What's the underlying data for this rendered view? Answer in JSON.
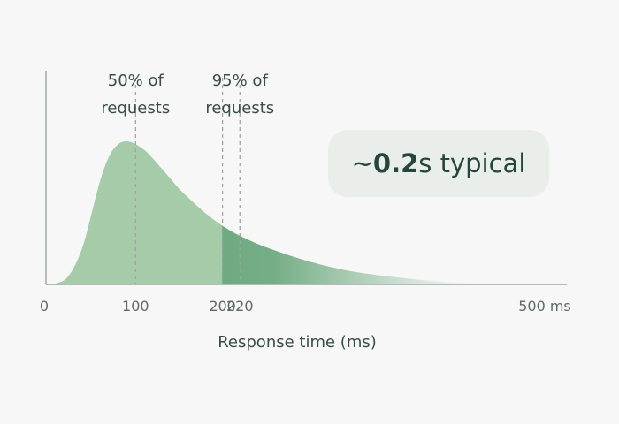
{
  "callout": {
    "prefix": "~",
    "value": "0.2",
    "suffix": "s typical"
  },
  "chart_data": {
    "type": "area",
    "title": "",
    "xlabel": "Response time (ms)",
    "ylabel": "",
    "xlim": [
      0,
      500
    ],
    "x_ticks": [
      {
        "value": 0,
        "label": "0"
      },
      {
        "value": 100,
        "label": "100"
      },
      {
        "value": 200,
        "label": "200"
      },
      {
        "value": 220,
        "label": "220"
      },
      {
        "value": 500,
        "label": "500 ms"
      }
    ],
    "markers": [
      {
        "x": 100,
        "line1": "50% of",
        "line2": "requests"
      },
      {
        "x": 200,
        "line1": "",
        "line2": ""
      },
      {
        "x": 220,
        "line1": "95% of",
        "line2": "requests"
      }
    ],
    "series": [
      {
        "x": [
          0,
          10,
          20,
          30,
          40,
          50,
          60,
          70,
          80,
          90,
          100,
          110,
          120,
          130,
          140,
          150,
          160,
          180,
          200,
          220,
          250,
          300,
          350,
          400,
          450,
          500
        ],
        "y": [
          0,
          0.01,
          0.04,
          0.13,
          0.28,
          0.51,
          0.74,
          0.9,
          0.98,
          1.0,
          0.98,
          0.94,
          0.88,
          0.81,
          0.74,
          0.67,
          0.61,
          0.5,
          0.41,
          0.34,
          0.26,
          0.16,
          0.09,
          0.05,
          0.02,
          0.01
        ]
      }
    ],
    "colors": {
      "fill_light": "#a6cba8",
      "fill_dark": "#6faa81",
      "axis": "#8c968f",
      "marker": "#9aa29d"
    }
  }
}
